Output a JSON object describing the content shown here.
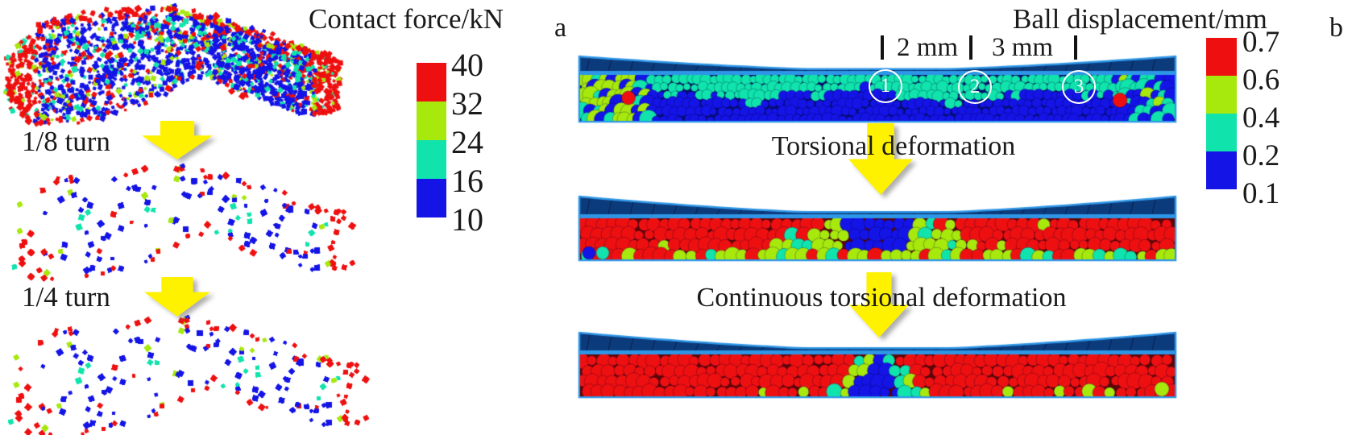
{
  "palette": {
    "red": "#EE1010",
    "chartreuse": "#A7E80D",
    "spring_green": "#10E3AC",
    "blue": "#1414E6",
    "wall_navy": "#0C3B7C",
    "container_blue": "#2E96E6",
    "arrow_yellow": "#FFF200",
    "marker_white": "#FFFFFF",
    "text": "#1A1A1A"
  },
  "panel_a": {
    "panel_label": "a",
    "colorbar_title": "Contact force/kN",
    "colorbar_tick_labels": [
      "40",
      "32",
      "24",
      "16",
      "10"
    ],
    "colorbar_colors": [
      "#EE1010",
      "#A7E80D",
      "#10E3AC",
      "#1414E6"
    ],
    "step_labels": [
      "1/8 turn",
      "1/4 turn"
    ]
  },
  "panel_b": {
    "panel_label": "b",
    "colorbar_title": "Ball displacement/mm",
    "colorbar_tick_labels": [
      "0.7",
      "0.6",
      "0.4",
      "0.2",
      "0.1"
    ],
    "colorbar_colors": [
      "#EE1010",
      "#A7E80D",
      "#10E3AC",
      "#1414E6"
    ],
    "dimension_labels": [
      "2 mm",
      "3 mm"
    ],
    "region_markers": [
      "1",
      "2",
      "3"
    ],
    "process_labels": [
      "Torsional deformation",
      "Continuous torsional deformation"
    ]
  }
}
